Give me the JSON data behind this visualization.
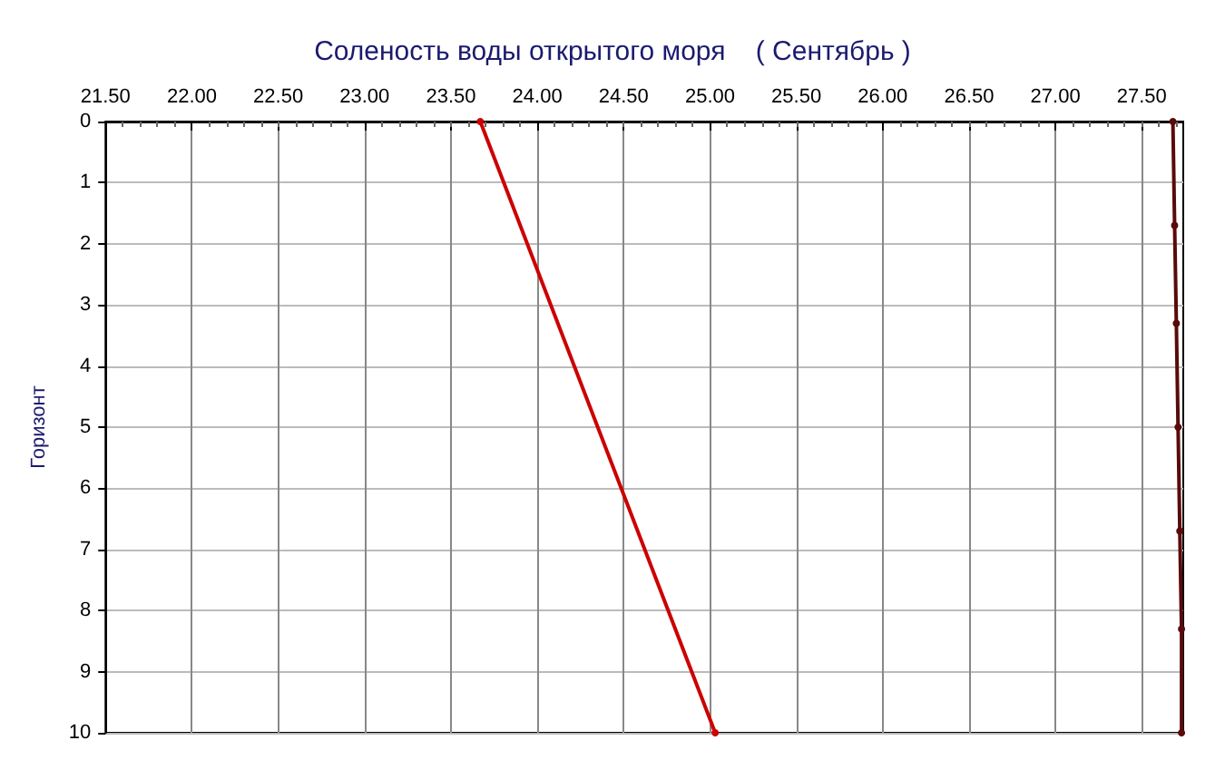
{
  "chart_data": {
    "type": "line",
    "title": "Соленость воды открытого моря    ( Сентябрь )",
    "ylabel": "Горизонт",
    "xlim": [
      21.5,
      27.74
    ],
    "xticks": [
      {
        "value": 21.5,
        "label": "21.50"
      },
      {
        "value": 22,
        "label": "22.00"
      },
      {
        "value": 22.5,
        "label": "22.50"
      },
      {
        "value": 23,
        "label": "23.00"
      },
      {
        "value": 23.5,
        "label": "23.50"
      },
      {
        "value": 24,
        "label": "24.00"
      },
      {
        "value": 24.5,
        "label": "24.50"
      },
      {
        "value": 25,
        "label": "25.00"
      },
      {
        "value": 25.5,
        "label": "25.50"
      },
      {
        "value": 26,
        "label": "26.00"
      },
      {
        "value": 26.5,
        "label": "26.50"
      },
      {
        "value": 27,
        "label": "27.00"
      },
      {
        "value": 27.5,
        "label": "27.50"
      }
    ],
    "ylim": [
      10,
      0
    ],
    "yticks": [
      0,
      1,
      2,
      3,
      4,
      5,
      6,
      7,
      8,
      9,
      10
    ],
    "grid": true,
    "marker": "circle",
    "line_style": "solid",
    "series": [
      {
        "color": "#cc0000",
        "x": [
          23.67,
          25.03
        ],
        "values": [
          0,
          10
        ]
      },
      {
        "color": "#5a0a0a",
        "x": [
          27.68,
          27.69,
          27.7,
          27.71,
          27.72,
          27.73,
          27.73
        ],
        "values": [
          0,
          1.7,
          3.3,
          5,
          6.7,
          8.3,
          10
        ]
      }
    ]
  }
}
